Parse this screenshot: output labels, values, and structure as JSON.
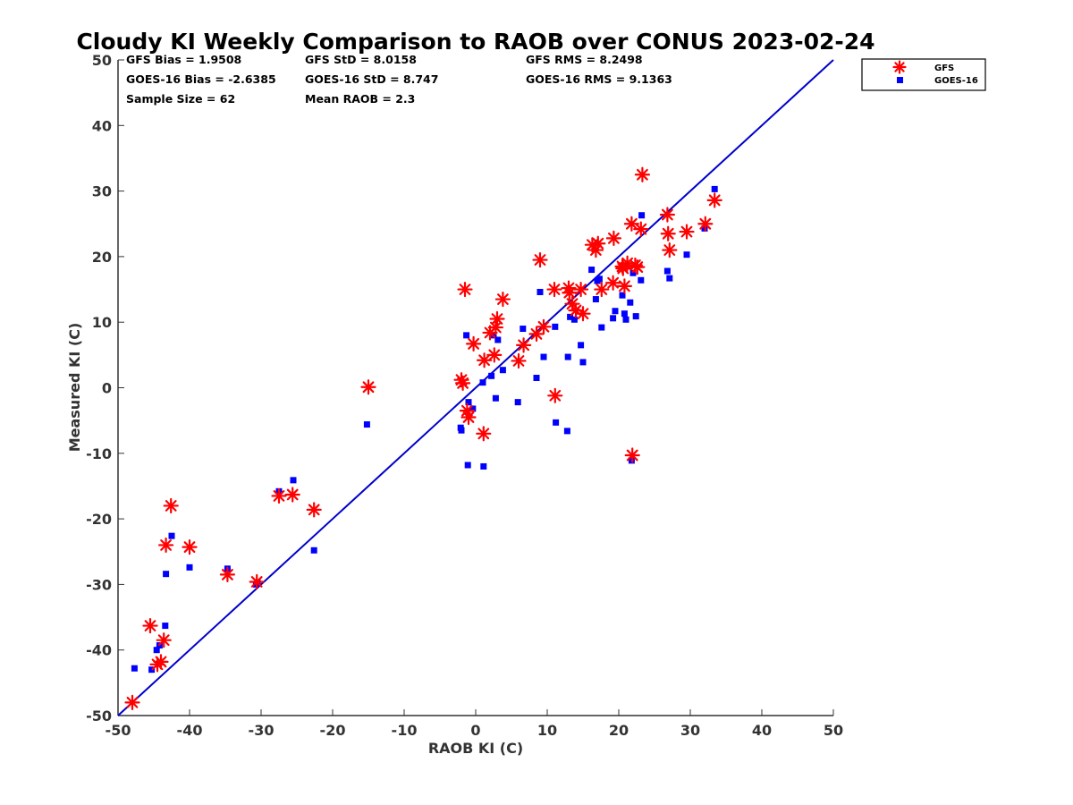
{
  "chart_data": {
    "type": "scatter",
    "title": "Cloudy KI Weekly Comparison to RAOB over CONUS 2023-02-24",
    "xlabel": "RAOB KI (C)",
    "ylabel": "Measured KI (C)",
    "xlim": [
      -50,
      50
    ],
    "ylim": [
      -50,
      50
    ],
    "xticks": [
      "-50",
      "-40",
      "-30",
      "-20",
      "-10",
      "0",
      "10",
      "20",
      "30",
      "40",
      "50"
    ],
    "yticks": [
      "-50",
      "-40",
      "-30",
      "-20",
      "-10",
      "0",
      "10",
      "20",
      "30",
      "40",
      "50"
    ],
    "reference_line": {
      "name": "1:1 line",
      "color": "#0000cc",
      "from": [
        -50,
        -50
      ],
      "to": [
        50,
        50
      ]
    },
    "stats": {
      "gfs_bias": "GFS Bias = 1.9508",
      "gfs_std": "GFS StD = 8.0158",
      "gfs_rms": "GFS RMS = 8.2498",
      "goes_bias": "GOES-16 Bias = -2.6385",
      "goes_std": "GOES-16 StD = 8.747",
      "goes_rms": "GOES-16 RMS = 9.1363",
      "sample_size": "Sample Size = 62",
      "mean_raob": "Mean RAOB = 2.3"
    },
    "legend": {
      "position": "top-right, outside plot"
    },
    "series": [
      {
        "name": "GFS",
        "marker": "asterisk",
        "color": "#ff0000",
        "points": [
          [
            -48,
            -48
          ],
          [
            -45.5,
            -36.3
          ],
          [
            -44.5,
            -42.2
          ],
          [
            -44,
            -41.8
          ],
          [
            -43.6,
            -38.5
          ],
          [
            -43.3,
            -24
          ],
          [
            -42.6,
            -18
          ],
          [
            -40,
            -24.3
          ],
          [
            -34.7,
            -28.5
          ],
          [
            -30.6,
            -29.6
          ],
          [
            -27.5,
            -16.5
          ],
          [
            -25.6,
            -16.3
          ],
          [
            -22.6,
            -18.6
          ],
          [
            -15,
            0.1
          ],
          [
            -2,
            1.2
          ],
          [
            -1.8,
            0.7
          ],
          [
            -1.5,
            15
          ],
          [
            -1.2,
            -3.5
          ],
          [
            -1,
            -4.5
          ],
          [
            -0.3,
            6.7
          ],
          [
            1.2,
            4.2
          ],
          [
            1.1,
            -7
          ],
          [
            2,
            8.4
          ],
          [
            2.6,
            5
          ],
          [
            2.8,
            9.2
          ],
          [
            3,
            10.5
          ],
          [
            3.8,
            13.5
          ],
          [
            6,
            4.1
          ],
          [
            6.7,
            6.5
          ],
          [
            8.5,
            8.2
          ],
          [
            9,
            19.5
          ],
          [
            9.5,
            9.3
          ],
          [
            11,
            15
          ],
          [
            11.1,
            -1.2
          ],
          [
            13,
            15.2
          ],
          [
            13.1,
            14.5
          ],
          [
            13.5,
            12.8
          ],
          [
            14,
            11.8
          ],
          [
            14.7,
            15
          ],
          [
            15,
            11.3
          ],
          [
            16.3,
            21.8
          ],
          [
            16.8,
            21
          ],
          [
            17.1,
            22
          ],
          [
            17.6,
            15
          ],
          [
            19.2,
            16
          ],
          [
            19.3,
            22.8
          ],
          [
            20.5,
            18.5
          ],
          [
            20.6,
            18.2
          ],
          [
            20.8,
            15.5
          ],
          [
            21.2,
            19
          ],
          [
            21.9,
            -10.3
          ],
          [
            21.8,
            25
          ],
          [
            22.3,
            18.7
          ],
          [
            22.6,
            18.4
          ],
          [
            23.1,
            24.2
          ],
          [
            23.3,
            32.5
          ],
          [
            26.8,
            26.4
          ],
          [
            26.9,
            23.5
          ],
          [
            27.1,
            21
          ],
          [
            29.5,
            23.8
          ],
          [
            32.1,
            25
          ],
          [
            33.4,
            28.6
          ]
        ]
      },
      {
        "name": "GOES-16",
        "marker": "square",
        "color": "#0000ff",
        "points": [
          [
            -47.7,
            -42.8
          ],
          [
            -45.3,
            -43
          ],
          [
            -44.6,
            -40
          ],
          [
            -44.2,
            -39.3
          ],
          [
            -43.4,
            -36.3
          ],
          [
            -43.3,
            -28.4
          ],
          [
            -42.5,
            -22.6
          ],
          [
            -40,
            -27.4
          ],
          [
            -34.7,
            -27.6
          ],
          [
            -30.5,
            -29.7
          ],
          [
            -27.5,
            -15.8
          ],
          [
            -25.5,
            -14.1
          ],
          [
            -22.6,
            -24.8
          ],
          [
            -15.2,
            -5.6
          ],
          [
            -2.1,
            -6.1
          ],
          [
            -2,
            -6.5
          ],
          [
            -1.3,
            8
          ],
          [
            -1.1,
            -11.8
          ],
          [
            -1,
            -2.2
          ],
          [
            -0.4,
            -3.2
          ],
          [
            1,
            0.8
          ],
          [
            1.1,
            -12
          ],
          [
            2.2,
            1.8
          ],
          [
            2.5,
            8
          ],
          [
            2.8,
            -1.6
          ],
          [
            3.1,
            7.3
          ],
          [
            3.8,
            2.7
          ],
          [
            5.9,
            -2.2
          ],
          [
            6.6,
            9
          ],
          [
            8.5,
            1.5
          ],
          [
            9,
            14.6
          ],
          [
            9.5,
            4.7
          ],
          [
            11.1,
            9.3
          ],
          [
            11.2,
            -5.3
          ],
          [
            12.8,
            -6.6
          ],
          [
            12.9,
            4.7
          ],
          [
            13.2,
            10.8
          ],
          [
            13.8,
            10.4
          ],
          [
            14.7,
            6.5
          ],
          [
            15,
            3.9
          ],
          [
            16.2,
            18
          ],
          [
            16.8,
            13.5
          ],
          [
            17,
            16.3
          ],
          [
            17.3,
            16.6
          ],
          [
            17.6,
            9.2
          ],
          [
            19.2,
            10.6
          ],
          [
            19.5,
            11.7
          ],
          [
            20.5,
            14.1
          ],
          [
            20.8,
            11.3
          ],
          [
            21,
            10.4
          ],
          [
            21.6,
            13
          ],
          [
            21.8,
            -11.1
          ],
          [
            22,
            17.5
          ],
          [
            22.4,
            10.9
          ],
          [
            23.1,
            16.4
          ],
          [
            23.2,
            26.3
          ],
          [
            26.8,
            17.8
          ],
          [
            27.1,
            16.7
          ],
          [
            29.5,
            20.3
          ],
          [
            32,
            24.3
          ],
          [
            33.4,
            30.3
          ],
          [
            -30.7,
            -30
          ]
        ]
      }
    ]
  }
}
